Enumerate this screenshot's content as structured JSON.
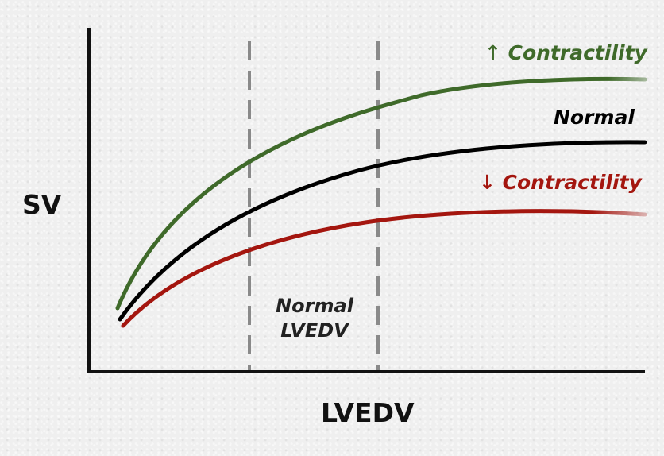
{
  "axes": {
    "y_label": "SV",
    "x_label": "LVEDV"
  },
  "curves": [
    {
      "label": "↑ Contractility",
      "color": "#3f6a2a"
    },
    {
      "label": "Normal",
      "color": "#000000"
    },
    {
      "label": "↓ Contractility",
      "color": "#a4160f"
    }
  ],
  "region": {
    "label_line1": "Normal",
    "label_line2": "LVEDV",
    "line_color": "#8a8a8a"
  },
  "colors": {
    "axis": "#111111",
    "background": "#efefef"
  }
}
